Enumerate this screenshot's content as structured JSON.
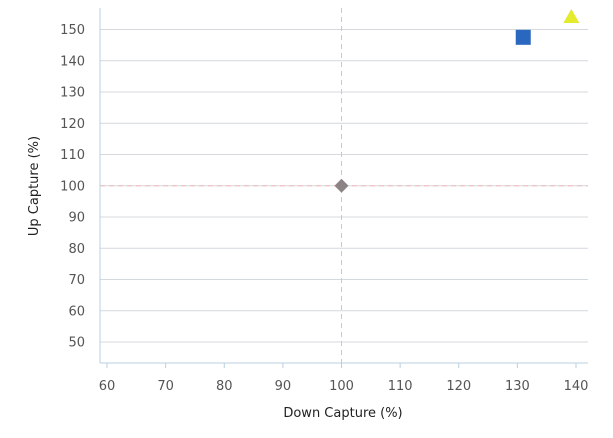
{
  "chart_data": {
    "type": "scatter",
    "xlabel": "Down Capture (%)",
    "ylabel": "Up Capture (%)",
    "xlim": [
      59,
      141
    ],
    "ylim": [
      43,
      157
    ],
    "x_ticks": [
      60,
      70,
      80,
      90,
      100,
      110,
      120,
      130,
      140
    ],
    "y_ticks": [
      50,
      60,
      70,
      80,
      90,
      100,
      110,
      120,
      130,
      140,
      150
    ],
    "grid": "horizontal",
    "reference_lines": {
      "x": 100,
      "y": 100,
      "color": "#f2b8b8"
    },
    "points": [
      {
        "x": 100,
        "y": 100,
        "marker": "diamond",
        "color": "#8c8484"
      },
      {
        "x": 131,
        "y": 147.5,
        "marker": "square",
        "color": "#2a67be"
      },
      {
        "x": 139.2,
        "y": 154,
        "marker": "triangle",
        "color": "#e4ea2c"
      }
    ]
  }
}
